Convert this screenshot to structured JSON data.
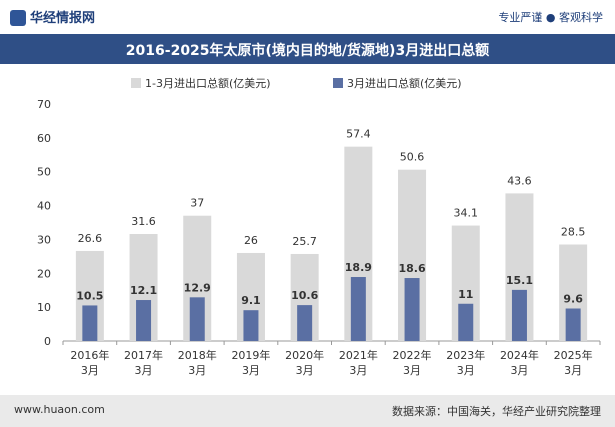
{
  "header": {
    "brand": "华经情报网",
    "slogan": "专业严谨 ● 客观科学"
  },
  "chart_data": {
    "type": "bar",
    "title": "2016-2025年太原市(境内目的地/货源地)3月进出口总额",
    "categories": [
      "2016年3月",
      "2017年3月",
      "2018年3月",
      "2019年3月",
      "2020年3月",
      "2021年3月",
      "2022年3月",
      "2023年3月",
      "2024年3月",
      "2025年3月"
    ],
    "series": [
      {
        "name": "1-3月进出口总额(亿美元)",
        "values": [
          26.6,
          31.6,
          37,
          26,
          25.7,
          57.4,
          50.6,
          34.1,
          43.6,
          28.5
        ],
        "color": "#d9d9d9"
      },
      {
        "name": "3月进出口总额(亿美元)",
        "values": [
          10.5,
          12.1,
          12.9,
          9.1,
          10.6,
          18.9,
          18.6,
          11,
          15.1,
          9.6
        ],
        "color": "#5a6fa3"
      }
    ],
    "ylim": [
      0,
      70
    ],
    "yticks": [
      0,
      10,
      20,
      30,
      40,
      50,
      60,
      70
    ],
    "legend": "top",
    "grid": false
  },
  "footer": {
    "url": "www.huaon.com",
    "source": "数据来源：中国海关，华经产业研究院整理"
  }
}
